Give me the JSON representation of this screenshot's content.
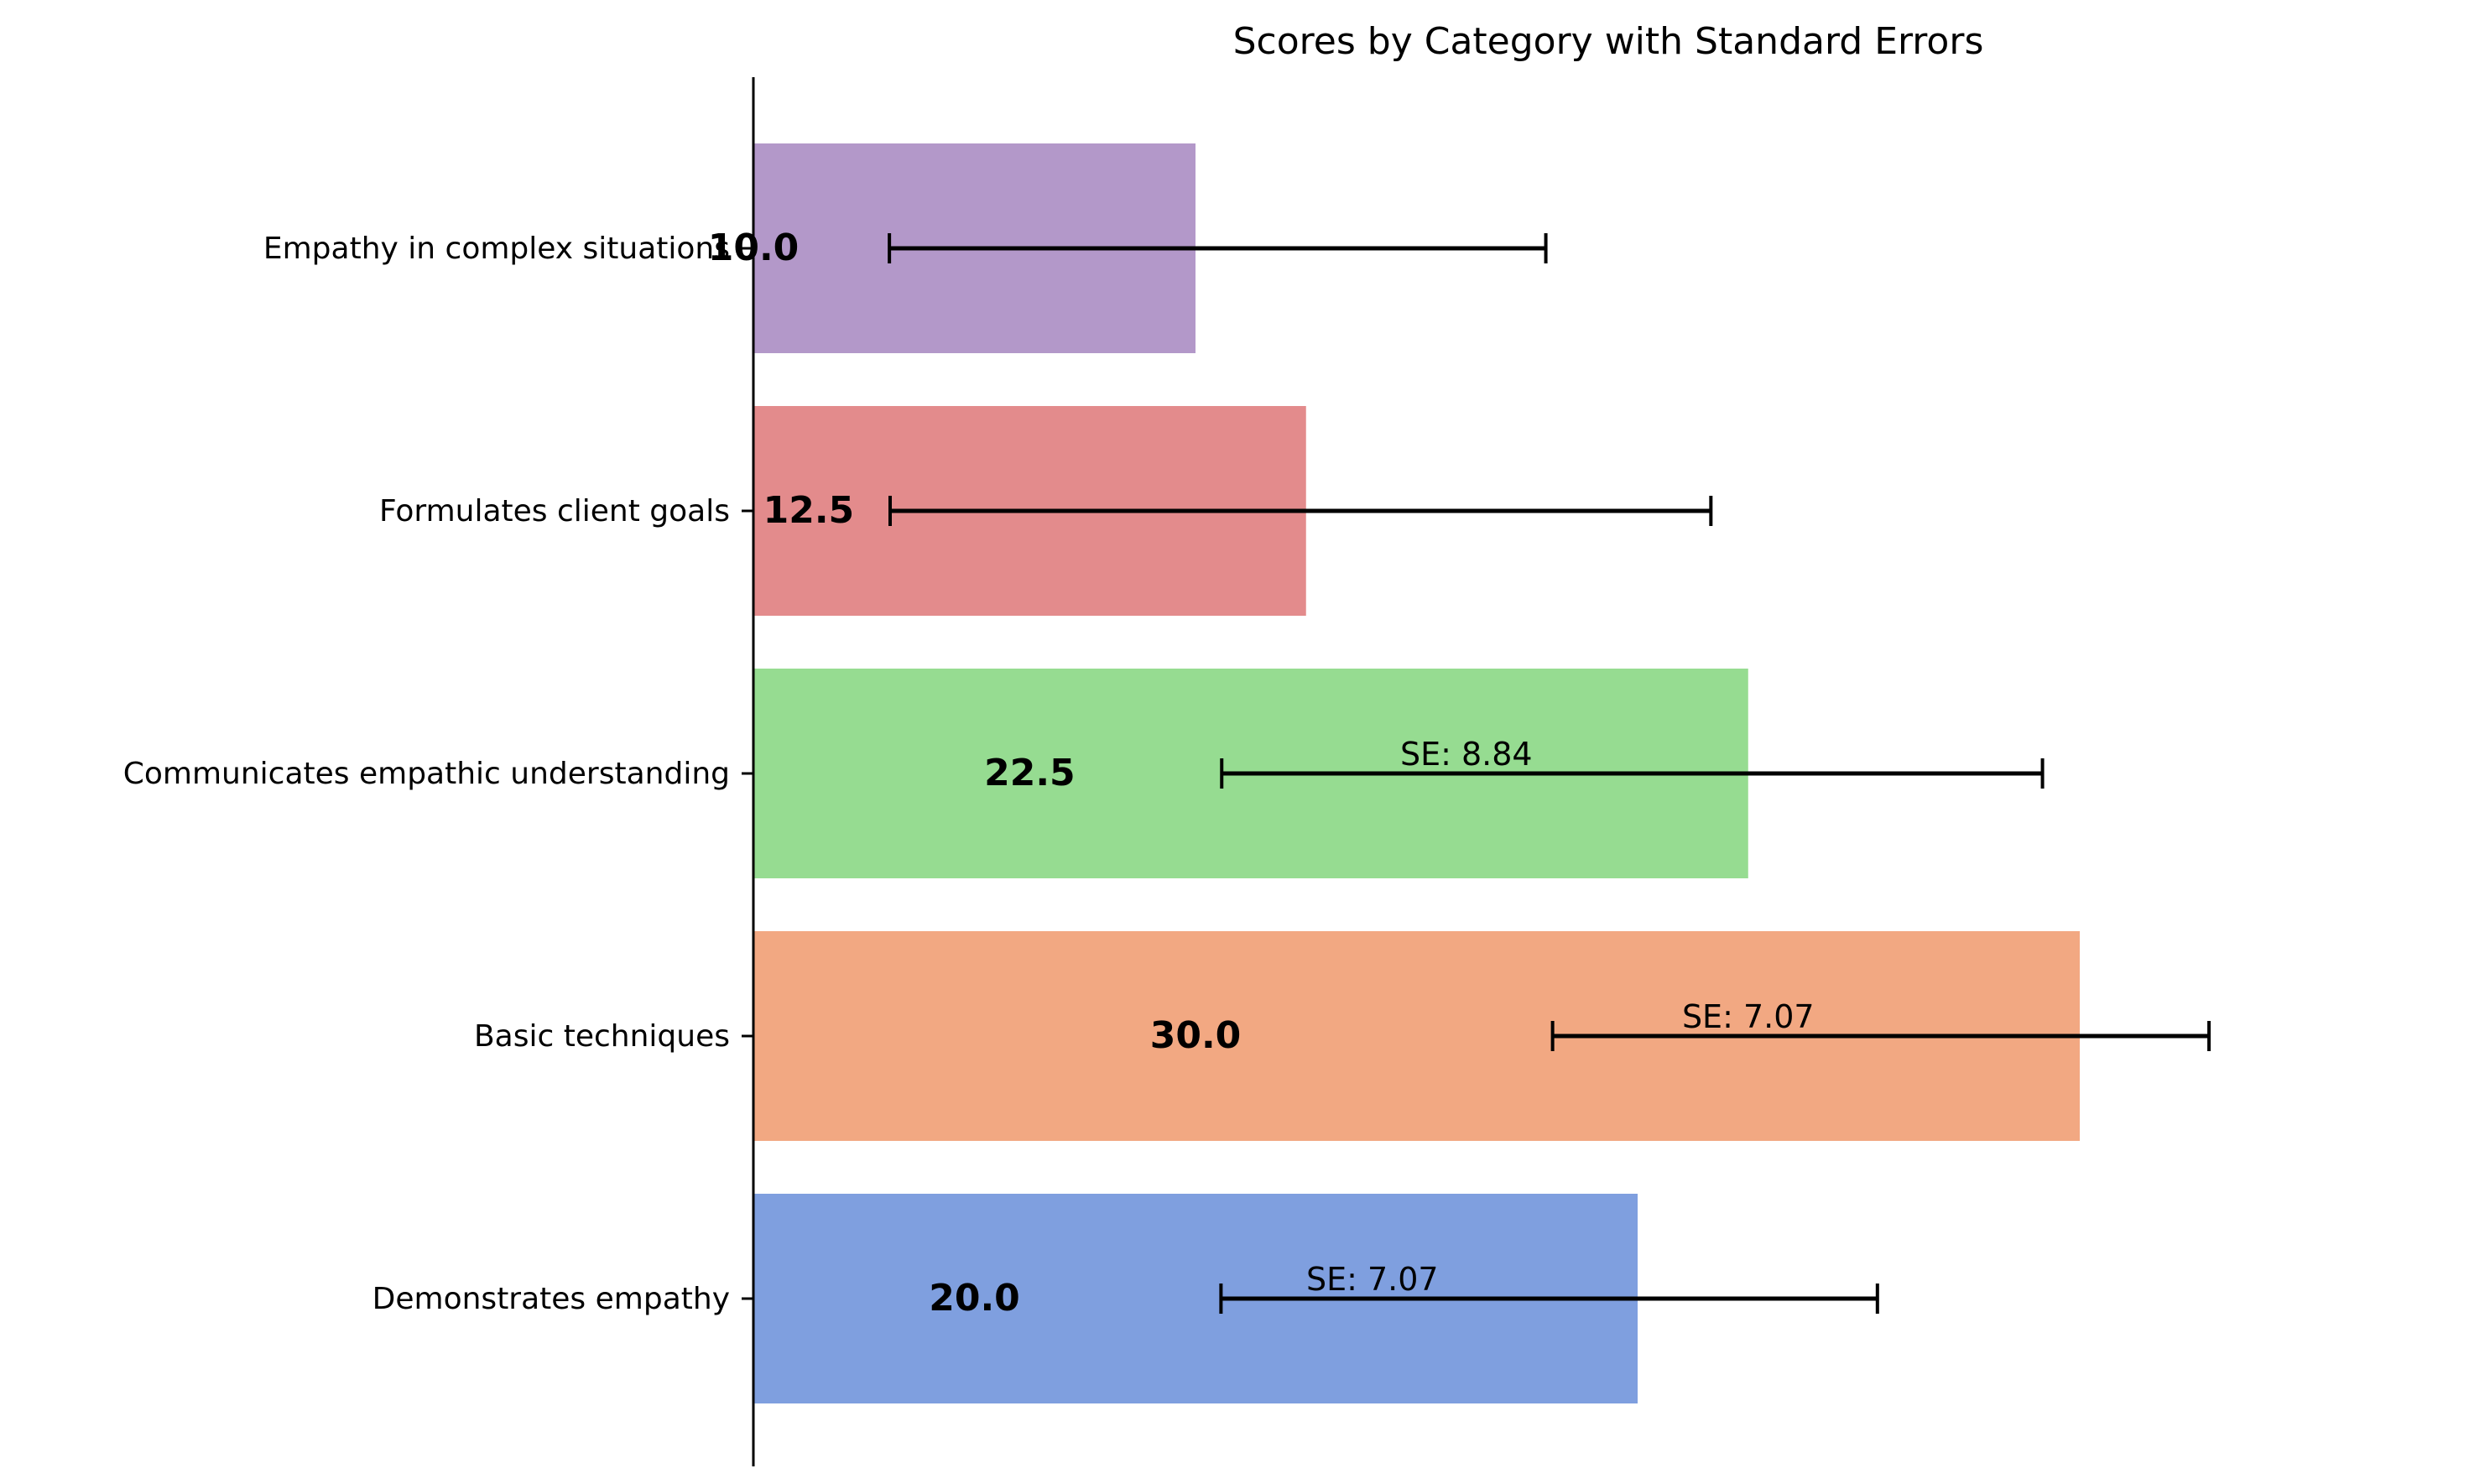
{
  "chart_data": {
    "type": "bar",
    "orientation": "horizontal",
    "title": "Scores by Category with Standard Errors",
    "xlabel": "",
    "ylabel": "",
    "categories": [
      "Demonstrates empathy",
      "Basic techniques",
      "Communicates empathic understanding",
      "Formulates client goals",
      "Empathy in complex situations"
    ],
    "values": [
      20.0,
      30.0,
      22.5,
      12.5,
      10.0
    ],
    "value_labels": [
      "20.0",
      "30.0",
      "22.5",
      "12.5",
      "10.0"
    ],
    "errors": [
      7.07,
      7.07,
      8.84,
      8.84,
      7.07
    ],
    "se_labels": [
      "SE: 7.07",
      "SE: 7.07",
      "SE: 8.84",
      "",
      ""
    ],
    "xlim": [
      0,
      37.1
    ],
    "colors": [
      "#7f9fdf",
      "#f2a882",
      "#96dc91",
      "#e38b8c",
      "#b398c9"
    ],
    "grid": false,
    "legend": "none"
  }
}
